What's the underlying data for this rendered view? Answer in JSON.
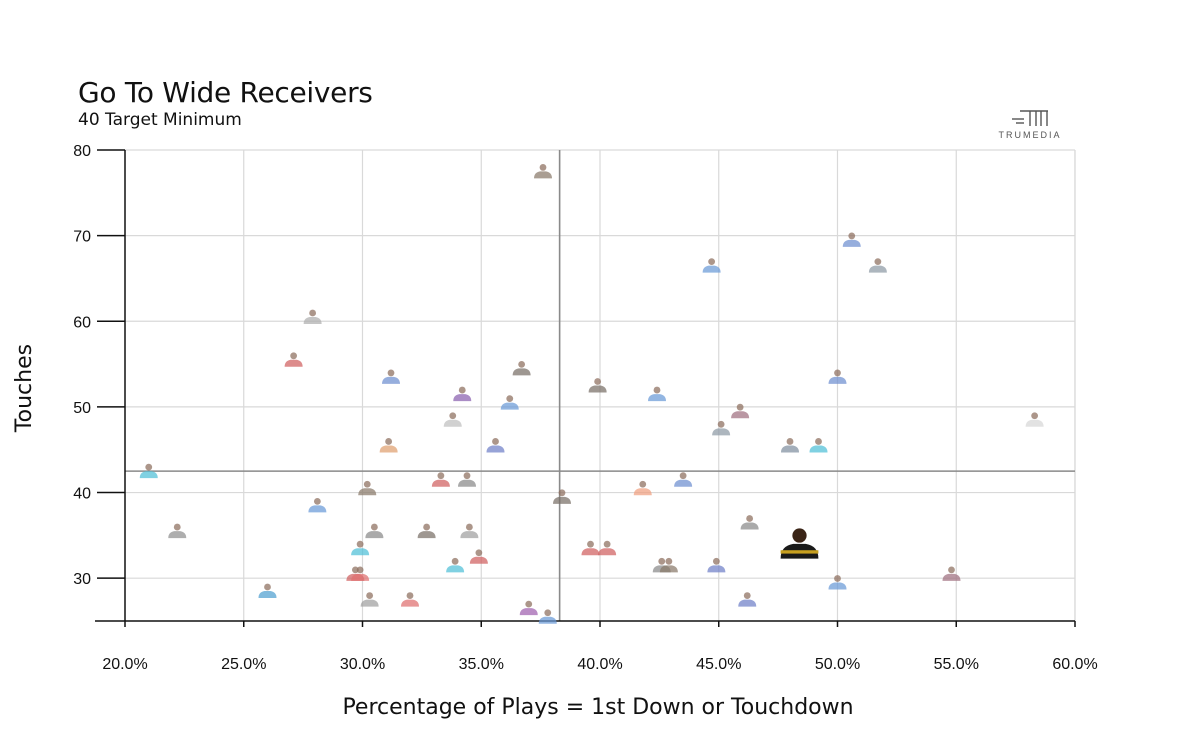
{
  "header": {
    "title": "Go To Wide Receivers",
    "subtitle": "40 Target Minimum",
    "brand": "TRUMEDIA"
  },
  "chart_data": {
    "type": "scatter",
    "title": "Go To Wide Receivers",
    "subtitle": "40 Target Minimum",
    "xlabel": "Percentage of Plays = 1st Down or Touchdown",
    "ylabel": "Touches",
    "xlim": [
      20,
      60
    ],
    "ylim": [
      25,
      80
    ],
    "x_ticks": [
      "20.0%",
      "25.0%",
      "30.0%",
      "35.0%",
      "40.0%",
      "45.0%",
      "50.0%",
      "55.0%",
      "60.0%"
    ],
    "y_ticks": [
      "30",
      "40",
      "50",
      "60",
      "70",
      "80"
    ],
    "x_tick_values": [
      20,
      25,
      30,
      35,
      40,
      45,
      50,
      55,
      60
    ],
    "y_tick_values": [
      30,
      40,
      50,
      60,
      70,
      80
    ],
    "grid": true,
    "reference_lines": {
      "x": 38.3,
      "y": 42.5
    },
    "points": [
      {
        "x": 37.6,
        "y": 77.5,
        "color": "#8a7a6a"
      },
      {
        "x": 50.6,
        "y": 69.5,
        "color": "#6f8fd0"
      },
      {
        "x": 51.7,
        "y": 66.5,
        "color": "#8e9aa6"
      },
      {
        "x": 44.7,
        "y": 66.5,
        "color": "#6a9ad8"
      },
      {
        "x": 27.9,
        "y": 60.5,
        "color": "#b0b0b0"
      },
      {
        "x": 27.1,
        "y": 55.5,
        "color": "#d06060"
      },
      {
        "x": 36.7,
        "y": 54.5,
        "color": "#7a7068"
      },
      {
        "x": 31.2,
        "y": 53.5,
        "color": "#6f8fd0"
      },
      {
        "x": 50.0,
        "y": 53.5,
        "color": "#6f8fd0"
      },
      {
        "x": 39.9,
        "y": 52.5,
        "color": "#7a7068"
      },
      {
        "x": 34.2,
        "y": 51.5,
        "color": "#8a60b0"
      },
      {
        "x": 42.4,
        "y": 51.5,
        "color": "#6a9ad8"
      },
      {
        "x": 36.2,
        "y": 50.5,
        "color": "#6a9ad8"
      },
      {
        "x": 45.9,
        "y": 49.5,
        "color": "#a07080"
      },
      {
        "x": 33.8,
        "y": 48.5,
        "color": "#c0c0c0"
      },
      {
        "x": 58.3,
        "y": 48.5,
        "color": "#d8d8d8"
      },
      {
        "x": 45.1,
        "y": 47.5,
        "color": "#8e9aa6"
      },
      {
        "x": 31.1,
        "y": 45.5,
        "color": "#e0a070"
      },
      {
        "x": 35.6,
        "y": 45.5,
        "color": "#7080c8"
      },
      {
        "x": 48.0,
        "y": 45.5,
        "color": "#8090a0"
      },
      {
        "x": 49.2,
        "y": 45.5,
        "color": "#50c0d8"
      },
      {
        "x": 21.0,
        "y": 42.5,
        "color": "#50c0d8"
      },
      {
        "x": 33.3,
        "y": 41.5,
        "color": "#d06060"
      },
      {
        "x": 34.4,
        "y": 41.5,
        "color": "#8a8a8a"
      },
      {
        "x": 43.5,
        "y": 41.5,
        "color": "#6f8fd0"
      },
      {
        "x": 30.2,
        "y": 40.5,
        "color": "#8a7a6a"
      },
      {
        "x": 41.8,
        "y": 40.5,
        "color": "#f0a080"
      },
      {
        "x": 38.4,
        "y": 39.5,
        "color": "#7a7068"
      },
      {
        "x": 28.1,
        "y": 38.5,
        "color": "#6a9ad8"
      },
      {
        "x": 46.3,
        "y": 36.5,
        "color": "#8a8a8a"
      },
      {
        "x": 22.2,
        "y": 35.5,
        "color": "#909090"
      },
      {
        "x": 30.5,
        "y": 35.5,
        "color": "#8a8a8a"
      },
      {
        "x": 32.7,
        "y": 35.5,
        "color": "#7a7068"
      },
      {
        "x": 34.5,
        "y": 35.5,
        "color": "#a0a0a0"
      },
      {
        "x": 48.4,
        "y": 34.0,
        "color": "#1a1a1a"
      },
      {
        "x": 29.9,
        "y": 33.5,
        "color": "#50c0d8"
      },
      {
        "x": 39.6,
        "y": 33.5,
        "color": "#d06060"
      },
      {
        "x": 40.3,
        "y": 33.5,
        "color": "#d06060"
      },
      {
        "x": 34.9,
        "y": 32.5,
        "color": "#d06060"
      },
      {
        "x": 33.9,
        "y": 31.5,
        "color": "#50c0d8"
      },
      {
        "x": 42.6,
        "y": 31.5,
        "color": "#8a8a8a"
      },
      {
        "x": 42.9,
        "y": 31.5,
        "color": "#8a7a6a"
      },
      {
        "x": 44.9,
        "y": 31.5,
        "color": "#7080c8"
      },
      {
        "x": 29.7,
        "y": 30.5,
        "color": "#d06060"
      },
      {
        "x": 29.9,
        "y": 30.5,
        "color": "#e07070"
      },
      {
        "x": 54.8,
        "y": 30.5,
        "color": "#a07080"
      },
      {
        "x": 50.0,
        "y": 29.5,
        "color": "#6a9ad8"
      },
      {
        "x": 26.0,
        "y": 28.5,
        "color": "#50a0d0"
      },
      {
        "x": 30.3,
        "y": 27.5,
        "color": "#a0a0a0"
      },
      {
        "x": 32.0,
        "y": 27.5,
        "color": "#e07070"
      },
      {
        "x": 46.2,
        "y": 27.5,
        "color": "#7080c8"
      },
      {
        "x": 37.0,
        "y": 26.5,
        "color": "#a060b0"
      },
      {
        "x": 37.8,
        "y": 25.5,
        "color": "#6a9ad8"
      }
    ]
  }
}
